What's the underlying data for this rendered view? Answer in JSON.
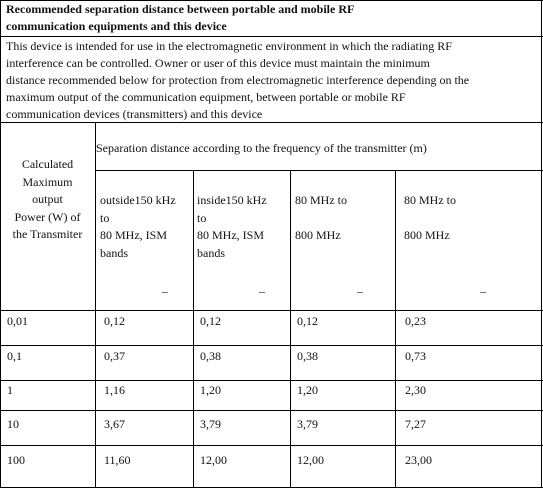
{
  "title_lines": [
    "Recommended separation distance between portable and mobile RF",
    "communication equipments and this device"
  ],
  "intro_lines": [
    "This device is intended for use in the electromagnetic environment in which the radiating RF",
    "interference can be controlled. Owner or user of this device must maintain the minimum",
    "distance recommended below for protection from electromagnetic interference depending on the",
    "maximum output of the communication equipment, between portable or mobile RF",
    "communication devices (transmitters) and this device"
  ],
  "table": {
    "first_header_lines": [
      "Calculated",
      "Maximum",
      "output",
      "Power (W) of",
      "the Transmiter"
    ],
    "group_header": "Separation distance according to the frequency of the transmitter (m)",
    "columns": [
      {
        "lines": [
          "outside150 kHz",
          "to",
          "80 MHz, ISM",
          "bands"
        ],
        "mark": "–"
      },
      {
        "lines": [
          "inside150 kHz",
          "to",
          "80 MHz, ISM",
          "bands"
        ],
        "mark": "–"
      },
      {
        "lines": [
          "80 MHz to",
          "",
          "800 MHz"
        ],
        "mark": "–"
      },
      {
        "lines": [
          "80 MHz to",
          "",
          "800 MHz"
        ],
        "mark": "–"
      }
    ],
    "rows": [
      [
        "0,01",
        "0,12",
        "0,12",
        "0,12",
        "0,23"
      ],
      [
        "0,1",
        "0,37",
        "0,38",
        "0,38",
        "0,73"
      ],
      [
        "1",
        "1,16",
        "1,20",
        "1,20",
        "2,30"
      ],
      [
        "10",
        "3,67",
        "3,79",
        "3,79",
        "7,27"
      ],
      [
        "100",
        "11,60",
        "12,00",
        "12,00",
        "23,00"
      ]
    ]
  }
}
